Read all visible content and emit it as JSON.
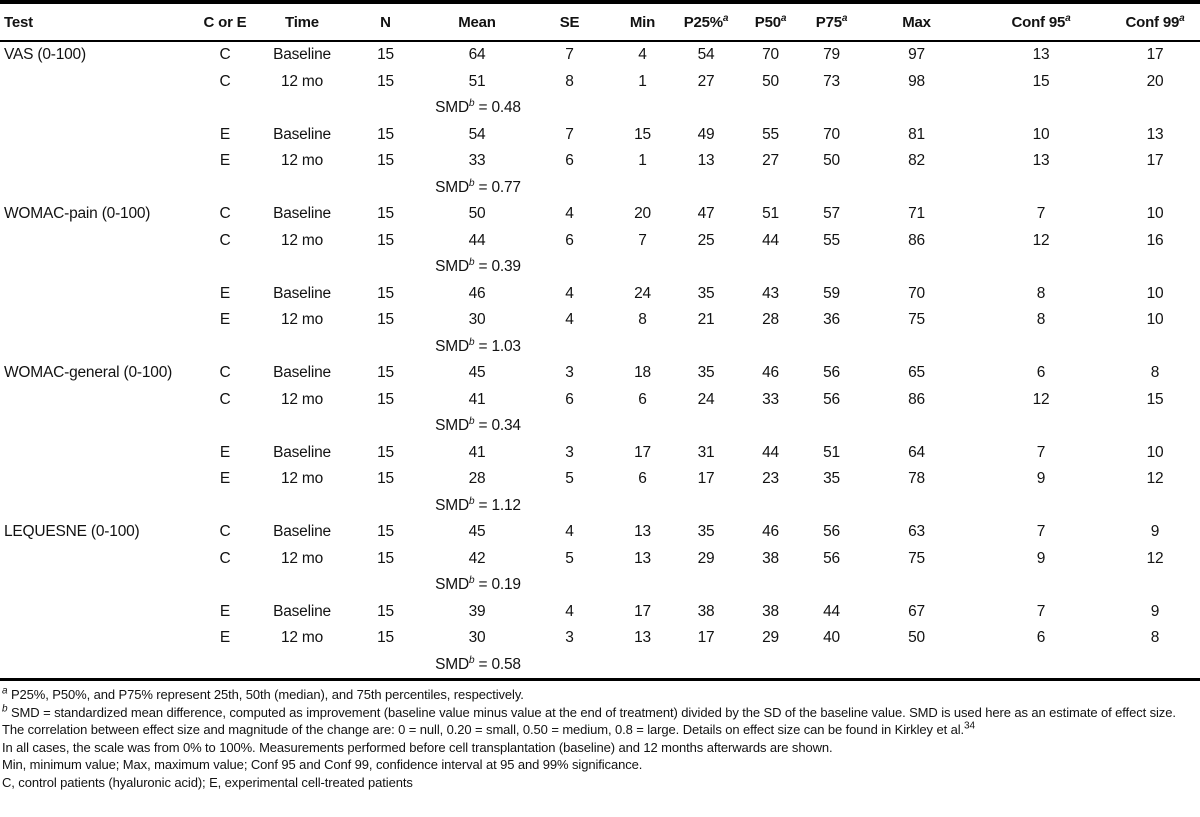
{
  "table": {
    "columns": [
      {
        "label": "Test",
        "sup": ""
      },
      {
        "label": "C or E",
        "sup": ""
      },
      {
        "label": "Time",
        "sup": ""
      },
      {
        "label": "N",
        "sup": ""
      },
      {
        "label": "Mean",
        "sup": ""
      },
      {
        "label": "SE",
        "sup": ""
      },
      {
        "label": "Min",
        "sup": ""
      },
      {
        "label": "P25%",
        "sup": "a"
      },
      {
        "label": "P50",
        "sup": "a"
      },
      {
        "label": "P75",
        "sup": "a"
      },
      {
        "label": "Max",
        "sup": ""
      },
      {
        "label": "Conf 95",
        "sup": "a"
      },
      {
        "label": "Conf 99",
        "sup": "a"
      }
    ],
    "sections": [
      {
        "test": "VAS (0-100)",
        "rows": [
          {
            "group": "C",
            "time": "Baseline",
            "values": [
              15,
              64,
              7,
              4,
              54,
              70,
              79,
              97,
              13,
              17
            ]
          },
          {
            "group": "C",
            "time": "12 mo",
            "values": [
              15,
              51,
              8,
              1,
              27,
              50,
              73,
              98,
              15,
              20
            ]
          },
          {
            "group": "E",
            "time": "Baseline",
            "values": [
              15,
              54,
              7,
              15,
              49,
              55,
              70,
              81,
              10,
              13
            ]
          },
          {
            "group": "E",
            "time": "12 mo",
            "values": [
              15,
              33,
              6,
              1,
              13,
              27,
              50,
              82,
              13,
              17
            ]
          }
        ],
        "smds": [
          {
            "label": "SMD",
            "sup": "b",
            "rest": " = 0.48"
          },
          {
            "label": "SMD",
            "sup": "b",
            "rest": " = 0.77"
          }
        ]
      },
      {
        "test": "WOMAC-pain (0-100)",
        "rows": [
          {
            "group": "C",
            "time": "Baseline",
            "values": [
              15,
              50,
              4,
              20,
              47,
              51,
              57,
              71,
              7,
              10
            ]
          },
          {
            "group": "C",
            "time": "12 mo",
            "values": [
              15,
              44,
              6,
              7,
              25,
              44,
              55,
              86,
              12,
              16
            ]
          },
          {
            "group": "E",
            "time": "Baseline",
            "values": [
              15,
              46,
              4,
              24,
              35,
              43,
              59,
              70,
              8,
              10
            ]
          },
          {
            "group": "E",
            "time": "12 mo",
            "values": [
              15,
              30,
              4,
              8,
              21,
              28,
              36,
              75,
              8,
              10
            ]
          }
        ],
        "smds": [
          {
            "label": "SMD",
            "sup": "b",
            "rest": " = 0.39"
          },
          {
            "label": "SMD",
            "sup": "b",
            "rest": " = 1.03"
          }
        ]
      },
      {
        "test": "WOMAC-general (0-100)",
        "rows": [
          {
            "group": "C",
            "time": "Baseline",
            "values": [
              15,
              45,
              3,
              18,
              35,
              46,
              56,
              65,
              6,
              8
            ]
          },
          {
            "group": "C",
            "time": "12 mo",
            "values": [
              15,
              41,
              6,
              6,
              24,
              33,
              56,
              86,
              12,
              15
            ]
          },
          {
            "group": "E",
            "time": "Baseline",
            "values": [
              15,
              41,
              3,
              17,
              31,
              44,
              51,
              64,
              7,
              10
            ]
          },
          {
            "group": "E",
            "time": "12 mo",
            "values": [
              15,
              28,
              5,
              6,
              17,
              23,
              35,
              78,
              9,
              12
            ]
          }
        ],
        "smds": [
          {
            "label": "SMD",
            "sup": "b",
            "rest": " = 0.34"
          },
          {
            "label": "SMD",
            "sup": "b",
            "rest": " = 1.12"
          }
        ]
      },
      {
        "test": "LEQUESNE (0-100)",
        "rows": [
          {
            "group": "C",
            "time": "Baseline",
            "values": [
              15,
              45,
              4,
              13,
              35,
              46,
              56,
              63,
              7,
              9
            ]
          },
          {
            "group": "C",
            "time": "12 mo",
            "values": [
              15,
              42,
              5,
              13,
              29,
              38,
              56,
              75,
              9,
              12
            ]
          },
          {
            "group": "E",
            "time": "Baseline",
            "values": [
              15,
              39,
              4,
              17,
              38,
              38,
              44,
              67,
              7,
              9
            ]
          },
          {
            "group": "E",
            "time": "12 mo",
            "values": [
              15,
              30,
              3,
              13,
              17,
              29,
              40,
              50,
              6,
              8
            ]
          }
        ],
        "smds": [
          {
            "label": "SMD",
            "sup": "b",
            "rest": " = 0.19"
          },
          {
            "label": "SMD",
            "sup": "b",
            "rest": " = 0.58"
          }
        ]
      }
    ]
  },
  "footnotes": {
    "a_marker": "a",
    "a_text": " P25%, P50%, and P75% represent 25th, 50th (median), and 75th percentiles, respectively.",
    "b_marker": "b",
    "b_text": " SMD = standardized mean difference, computed as improvement (baseline value minus value at the end of treatment) divided by the SD of the baseline value. SMD is used here as an estimate of effect size. The correlation between effect size and magnitude of the change are: 0 = null, 0.20 = small, 0.50 = medium, 0.8 = large. Details on effect size can be found in Kirkley et al.",
    "b_ref": "34",
    "scale_note": "In all cases, the scale was from 0% to 100%. Measurements performed before cell transplantation (baseline) and 12 months afterwards are shown.",
    "abbrev_note": "Min, minimum value; Max, maximum value; Conf 95 and Conf 99, confidence interval at 95 and 99% significance.",
    "groups_note": "C, control patients (hyaluronic acid); E, experimental cell-treated patients"
  }
}
